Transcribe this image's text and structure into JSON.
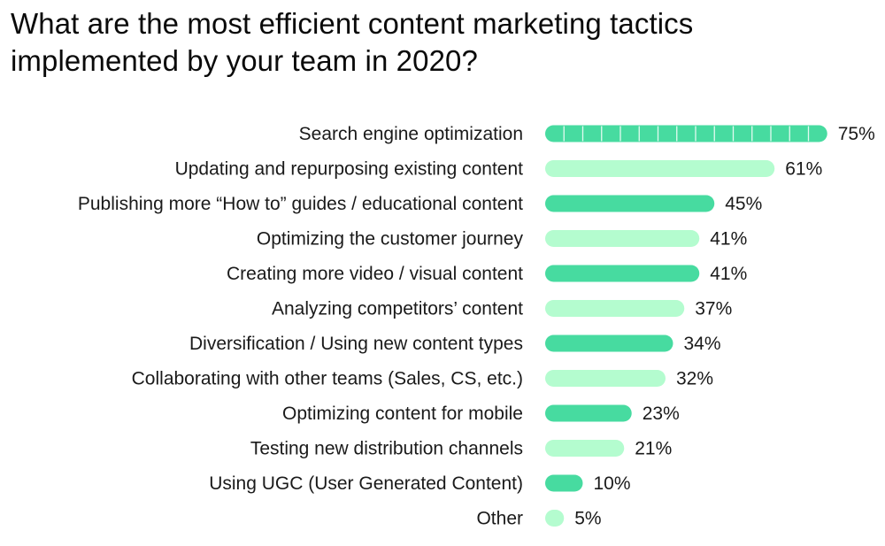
{
  "chart_data": {
    "type": "bar",
    "orientation": "horizontal",
    "title": "What are the most efficient content marketing tactics implemented by your team in 2020?",
    "categories": [
      "Search engine optimization",
      "Updating and repurposing existing content",
      "Publishing more “How to” guides / educational content",
      "Optimizing the customer journey",
      "Creating more video / visual content",
      "Analyzing competitors’ content",
      "Diversification / Using new content types",
      "Collaborating with other teams (Sales, CS, etc.)",
      "Optimizing content for mobile",
      "Testing new distribution channels",
      "Using UGC (User Generated Content)",
      "Other"
    ],
    "values": [
      75,
      61,
      45,
      41,
      41,
      37,
      34,
      32,
      23,
      21,
      10,
      5
    ],
    "value_labels": [
      "75%",
      "61%",
      "45%",
      "41%",
      "41%",
      "37%",
      "34%",
      "32%",
      "23%",
      "21%",
      "10%",
      "5%"
    ],
    "unit": "%",
    "xlim": [
      0,
      75
    ],
    "xlabel": "",
    "ylabel": "",
    "grid": false,
    "legend": "none",
    "colors": {
      "dark": "#47dba0",
      "light": "#b4fccf",
      "text": "#1a1a1a",
      "tick": "#ffffff"
    }
  }
}
